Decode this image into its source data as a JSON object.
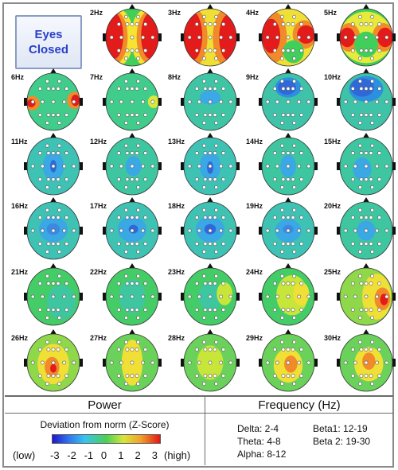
{
  "badge": {
    "line1": "Eyes",
    "line2": "Closed"
  },
  "maps": [
    {
      "label": "2Hz",
      "bg": "#3fcf5a",
      "blobs": [
        [
          "#f6e332",
          -0.55,
          0,
          0.6,
          1.0
        ],
        [
          "#f6e332",
          0.55,
          0,
          0.6,
          1.0
        ],
        [
          "#f18a2a",
          -0.62,
          0,
          0.45,
          0.9
        ],
        [
          "#f18a2a",
          0.62,
          0,
          0.45,
          0.9
        ],
        [
          "#e41b1b",
          -0.68,
          -0.05,
          0.34,
          0.8
        ],
        [
          "#e41b1b",
          0.68,
          -0.05,
          0.34,
          0.8
        ]
      ]
    },
    {
      "label": "3Hz",
      "bg": "#f0e036",
      "blobs": [
        [
          "#f18a2a",
          -0.6,
          0,
          0.5,
          1.0
        ],
        [
          "#f18a2a",
          0.6,
          0,
          0.5,
          1.0
        ],
        [
          "#e41b1b",
          -0.68,
          -0.05,
          0.38,
          0.85
        ],
        [
          "#e41b1b",
          0.7,
          0,
          0.36,
          0.8
        ]
      ]
    },
    {
      "label": "4Hz",
      "bg": "#f0e036",
      "blobs": [
        [
          "#f18a2a",
          -0.55,
          0,
          0.5,
          0.9
        ],
        [
          "#e41b1b",
          -0.65,
          -0.05,
          0.35,
          0.6
        ],
        [
          "#f18a2a",
          0.62,
          -0.1,
          0.45,
          0.5
        ],
        [
          "#e41b1b",
          0.68,
          -0.1,
          0.34,
          0.32
        ],
        [
          "#3fcf5a",
          0.2,
          0.5,
          0.4,
          0.4
        ]
      ]
    },
    {
      "label": "5Hz",
      "bg": "#3fcf5a",
      "blobs": [
        [
          "#e7ea3a",
          0,
          0,
          1.0,
          0.9
        ],
        [
          "#f18a2a",
          -0.65,
          0,
          0.42,
          0.5
        ],
        [
          "#e41b1b",
          -0.72,
          0,
          0.3,
          0.34
        ],
        [
          "#f18a2a",
          0.65,
          0,
          0.42,
          0.5
        ],
        [
          "#e41b1b",
          0.72,
          0,
          0.3,
          0.34
        ],
        [
          "#3fcf5a",
          0,
          0.25,
          0.45,
          0.45
        ]
      ]
    },
    {
      "label": "6Hz",
      "bg": "#40cc8a",
      "blobs": [
        [
          "#f18a2a",
          -0.8,
          0.05,
          0.28,
          0.25
        ],
        [
          "#e41b1b",
          -0.84,
          0.05,
          0.16,
          0.14
        ],
        [
          "#f18a2a",
          0.8,
          -0.05,
          0.28,
          0.3
        ],
        [
          "#e41b1b",
          0.84,
          -0.05,
          0.16,
          0.2
        ]
      ]
    },
    {
      "label": "7Hz",
      "bg": "#40cc8a",
      "blobs": [
        [
          "#d9e93a",
          0.82,
          0,
          0.22,
          0.22
        ]
      ]
    },
    {
      "label": "8Hz",
      "bg": "#3ec6a4",
      "blobs": [
        [
          "#3aa9e6",
          0,
          -0.15,
          0.4,
          0.25
        ]
      ]
    },
    {
      "label": "9Hz",
      "bg": "#3ec2a8",
      "blobs": [
        [
          "#2d8fe0",
          0,
          -0.5,
          0.5,
          0.35
        ],
        [
          "#3068d8",
          -0.05,
          -0.5,
          0.35,
          0.25
        ]
      ]
    },
    {
      "label": "10Hz",
      "bg": "#3ec2a8",
      "blobs": [
        [
          "#2d8fe0",
          0,
          -0.45,
          0.65,
          0.45
        ],
        [
          "#3068d8",
          -0.15,
          -0.5,
          0.45,
          0.32
        ]
      ]
    },
    {
      "label": "11Hz",
      "bg": "#3ec2b4",
      "blobs": [
        [
          "#39a8e4",
          0,
          0,
          0.4,
          0.5
        ],
        [
          "#3068d8",
          0,
          0,
          0.12,
          0.22
        ]
      ]
    },
    {
      "label": "12Hz",
      "bg": "#3ec6a0",
      "blobs": [
        [
          "#39a8e4",
          0.05,
          0,
          0.3,
          0.35
        ]
      ]
    },
    {
      "label": "13Hz",
      "bg": "#3ec2b4",
      "blobs": [
        [
          "#39a8e4",
          0,
          0,
          0.4,
          0.5
        ],
        [
          "#3068d8",
          0,
          0.05,
          0.12,
          0.22
        ]
      ]
    },
    {
      "label": "14Hz",
      "bg": "#3ec6a0",
      "blobs": [
        [
          "#39a8e4",
          0,
          0,
          0.3,
          0.4
        ]
      ]
    },
    {
      "label": "15Hz",
      "bg": "#3ec6a0",
      "blobs": [
        [
          "#39a8e4",
          -0.15,
          0.1,
          0.35,
          0.4
        ]
      ]
    },
    {
      "label": "16Hz",
      "bg": "#3ec2b4",
      "blobs": [
        [
          "#39a8e4",
          0,
          -0.05,
          0.55,
          0.45
        ],
        [
          "#3d88e0",
          0,
          -0.05,
          0.25,
          0.2
        ]
      ]
    },
    {
      "label": "17Hz",
      "bg": "#3ec2b4",
      "blobs": [
        [
          "#39a8e4",
          0,
          -0.05,
          0.55,
          0.45
        ],
        [
          "#3068d8",
          0.05,
          -0.05,
          0.18,
          0.15
        ]
      ]
    },
    {
      "label": "18Hz",
      "bg": "#3ec2b4",
      "blobs": [
        [
          "#39a8e4",
          0,
          -0.05,
          0.55,
          0.45
        ],
        [
          "#3068d8",
          0,
          -0.05,
          0.22,
          0.18
        ]
      ]
    },
    {
      "label": "19Hz",
      "bg": "#3ec2b4",
      "blobs": [
        [
          "#39a8e4",
          0,
          0,
          0.5,
          0.4
        ],
        [
          "#3d88e0",
          0,
          -0.05,
          0.2,
          0.15
        ]
      ]
    },
    {
      "label": "20Hz",
      "bg": "#3ec6a0",
      "blobs": [
        [
          "#39a8e4",
          0,
          0,
          0.35,
          0.35
        ]
      ]
    },
    {
      "label": "21Hz",
      "bg": "#44cc66",
      "blobs": [
        [
          "#3ec6a0",
          0.3,
          0.2,
          0.55,
          0.6
        ]
      ]
    },
    {
      "label": "22Hz",
      "bg": "#44cc66",
      "blobs": [
        [
          "#3ec6a0",
          0,
          0,
          0.5,
          0.6
        ]
      ]
    },
    {
      "label": "23Hz",
      "bg": "#44cc66",
      "blobs": [
        [
          "#3ec6a0",
          0,
          0,
          0.45,
          0.5
        ],
        [
          "#c8e63a",
          0.55,
          -0.1,
          0.3,
          0.4
        ]
      ]
    },
    {
      "label": "24Hz",
      "bg": "#44cc66",
      "blobs": [
        [
          "#c8e63a",
          0.15,
          -0.05,
          0.6,
          0.7
        ],
        [
          "#f0e036",
          0.5,
          -0.1,
          0.3,
          0.4
        ]
      ]
    },
    {
      "label": "25Hz",
      "bg": "#8ed84a",
      "blobs": [
        [
          "#f0e036",
          0.4,
          0,
          0.55,
          0.8
        ],
        [
          "#f18a2a",
          0.62,
          0.08,
          0.3,
          0.4
        ],
        [
          "#e41b1b",
          0.68,
          0.1,
          0.15,
          0.2
        ]
      ]
    },
    {
      "label": "26Hz",
      "bg": "#8ed84a",
      "blobs": [
        [
          "#f0e036",
          0,
          0.05,
          0.6,
          0.7
        ],
        [
          "#f18a2a",
          -0.05,
          0.15,
          0.28,
          0.35
        ],
        [
          "#e41b1b",
          0,
          0.2,
          0.12,
          0.15
        ]
      ]
    },
    {
      "label": "27Hz",
      "bg": "#6ad25a",
      "blobs": [
        [
          "#f0e036",
          0,
          0,
          0.4,
          0.8
        ]
      ]
    },
    {
      "label": "28Hz",
      "bg": "#6ad25a",
      "blobs": [
        [
          "#c8e63a",
          0,
          0,
          0.5,
          0.6
        ]
      ]
    },
    {
      "label": "29Hz",
      "bg": "#6ad25a",
      "blobs": [
        [
          "#f0e036",
          0,
          0.1,
          0.55,
          0.6
        ],
        [
          "#f18a2a",
          0.1,
          0.05,
          0.25,
          0.3
        ]
      ]
    },
    {
      "label": "30Hz",
      "bg": "#6ad25a",
      "blobs": [
        [
          "#f0e036",
          0.1,
          0.05,
          0.55,
          0.6
        ],
        [
          "#f18a2a",
          0.1,
          -0.05,
          0.25,
          0.3
        ]
      ]
    }
  ],
  "legend": {
    "power_title": "Power",
    "frequency_title": "Frequency (Hz)",
    "deviation_label": "Deviation from norm (Z-Score)",
    "low_label": "(low)",
    "high_label": "(high)",
    "ticks": [
      "-3",
      "-2",
      "-1",
      "0",
      "1",
      "2",
      "3"
    ],
    "colorbar_colors": [
      "#1e18c8",
      "#2f6ef0",
      "#37c4f0",
      "#4ccf55",
      "#d6e63a",
      "#f3a12a",
      "#e21616"
    ],
    "bands": {
      "delta": "Delta: 2-4",
      "theta": "Theta: 4-8",
      "alpha": "Alpha: 8-12",
      "beta1": "Beta1: 12-19",
      "beta2": "Beta 2: 19-30"
    }
  }
}
